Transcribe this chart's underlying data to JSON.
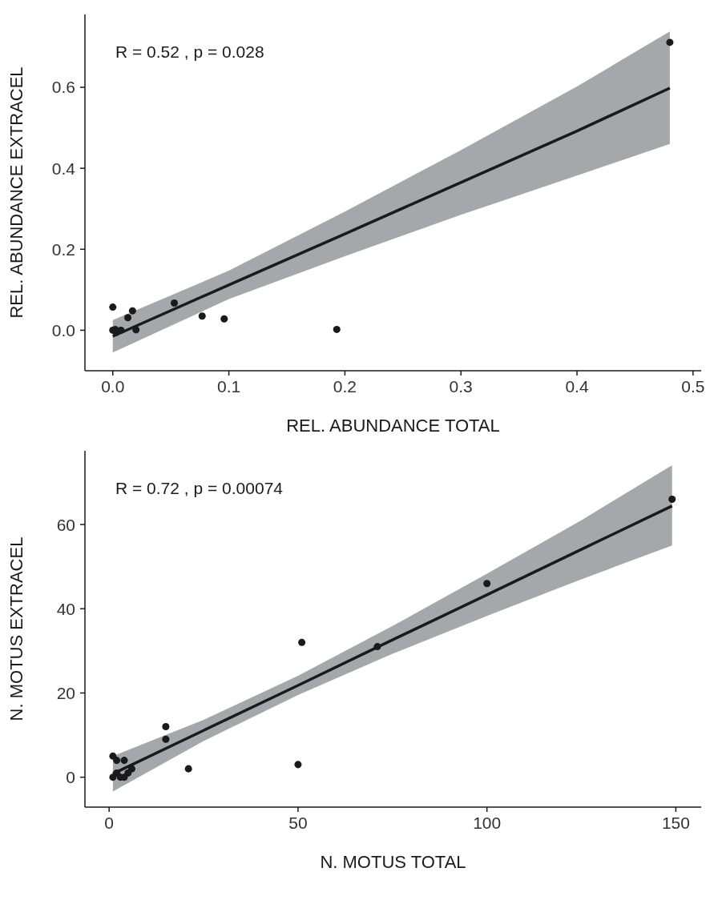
{
  "chart_data": [
    {
      "type": "scatter",
      "xlabel": "REL. ABUNDANCE TOTAL",
      "ylabel": "REL. ABUNDANCE EXTRACEL",
      "annotations": [
        "R = 0.52 , p = 0.028"
      ],
      "grid": false,
      "xlim": [
        -0.024,
        0.507
      ],
      "ylim": [
        -0.1,
        0.78
      ],
      "xticks": [
        {
          "value": 0,
          "label": "0.0"
        },
        0.1,
        0.2,
        0.3,
        0.4,
        0.5
      ],
      "yticks": [
        {
          "value": 0,
          "label": "0.0"
        },
        0.2,
        0.4,
        0.6
      ],
      "series": [
        {
          "type": "line",
          "marker": "none",
          "color": "#1a1a1a",
          "x": [
            0,
            0.1,
            0.2,
            0.3,
            0.4,
            0.48
          ],
          "values": [
            -0.015,
            0.112,
            0.238,
            0.365,
            0.492,
            0.598
          ],
          "lower": [
            -0.055,
            0.077,
            0.183,
            0.285,
            0.382,
            0.46
          ],
          "upper": [
            0.025,
            0.147,
            0.293,
            0.445,
            0.602,
            0.738
          ]
        },
        {
          "type": "scatter",
          "marker": "circle",
          "color": "#1a1a1a",
          "x": [
            0,
            0.002,
            0.007,
            0.003,
            0,
            0.017,
            0.013,
            0.053,
            0.077,
            0.096,
            0.193,
            0.02,
            0.48
          ],
          "values": [
            0,
            0.002,
            0,
            -0.005,
            0.057,
            0.048,
            0.031,
            0.067,
            0.035,
            0.028,
            0.002,
            0.001,
            0.711
          ]
        }
      ]
    },
    {
      "type": "scatter",
      "xlabel": "N. MOTUS TOTAL",
      "ylabel": "N. MOTUS EXTRACEL",
      "annotations": [
        "R = 0.72 , p = 0.00074"
      ],
      "grid": false,
      "xlim": [
        -6.4,
        156.7
      ],
      "ylim": [
        -7.1,
        77.5
      ],
      "xticks": [
        0,
        50,
        100,
        150
      ],
      "yticks": [
        0,
        20,
        40,
        60
      ],
      "series": [
        {
          "type": "line",
          "marker": "none",
          "color": "#1a1a1a",
          "x": [
            1,
            25,
            50,
            75,
            100,
            125,
            149
          ],
          "values": [
            0.8,
            11.1,
            21.8,
            32.6,
            43.3,
            54.1,
            64.4
          ],
          "lower": [
            -3.4,
            8.6,
            19.5,
            29.3,
            38.3,
            47.0,
            55.0
          ],
          "upper": [
            5.0,
            13.6,
            24.1,
            35.9,
            48.3,
            61.0,
            74.1
          ]
        },
        {
          "type": "scatter",
          "marker": "circle",
          "color": "#1a1a1a",
          "x": [
            149,
            100,
            71,
            51,
            50,
            21,
            15,
            15,
            1,
            2,
            4,
            1,
            2,
            3,
            4,
            5,
            6
          ],
          "values": [
            66,
            46,
            31,
            32,
            3,
            2,
            12,
            9,
            5,
            4,
            4,
            0,
            1,
            0,
            0,
            1,
            2
          ]
        }
      ]
    }
  ]
}
